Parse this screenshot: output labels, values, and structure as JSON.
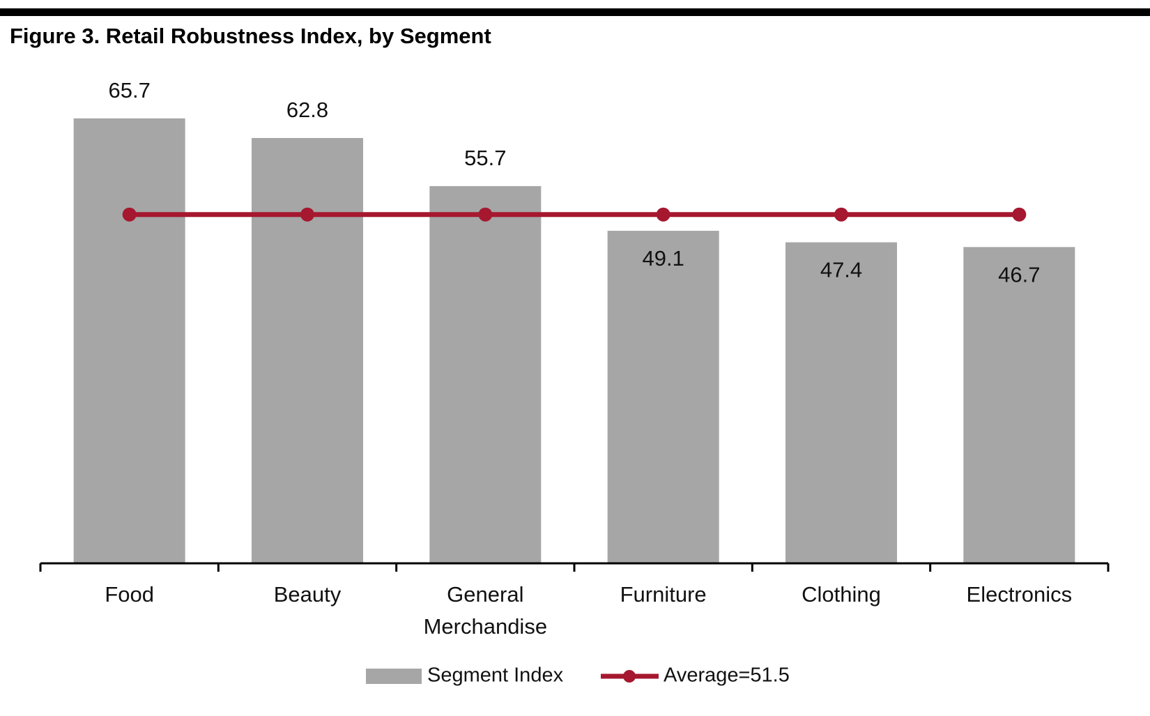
{
  "chart_data": {
    "type": "bar",
    "title": "Figure 3. Retail Robustness Index, by Segment",
    "categories": [
      "Food",
      "Beauty",
      "General Merchandise",
      "Furniture",
      "Clothing",
      "Electronics"
    ],
    "series": [
      {
        "name": "Segment Index",
        "type": "bar",
        "color": "#a6a6a6",
        "values": [
          65.7,
          62.8,
          55.7,
          49.1,
          47.4,
          46.7
        ]
      },
      {
        "name": "Average=51.5",
        "type": "line",
        "color": "#a5182f",
        "values": [
          51.5,
          51.5,
          51.5,
          51.5,
          51.5,
          51.5
        ]
      }
    ],
    "ylim": [
      0,
      70
    ]
  }
}
